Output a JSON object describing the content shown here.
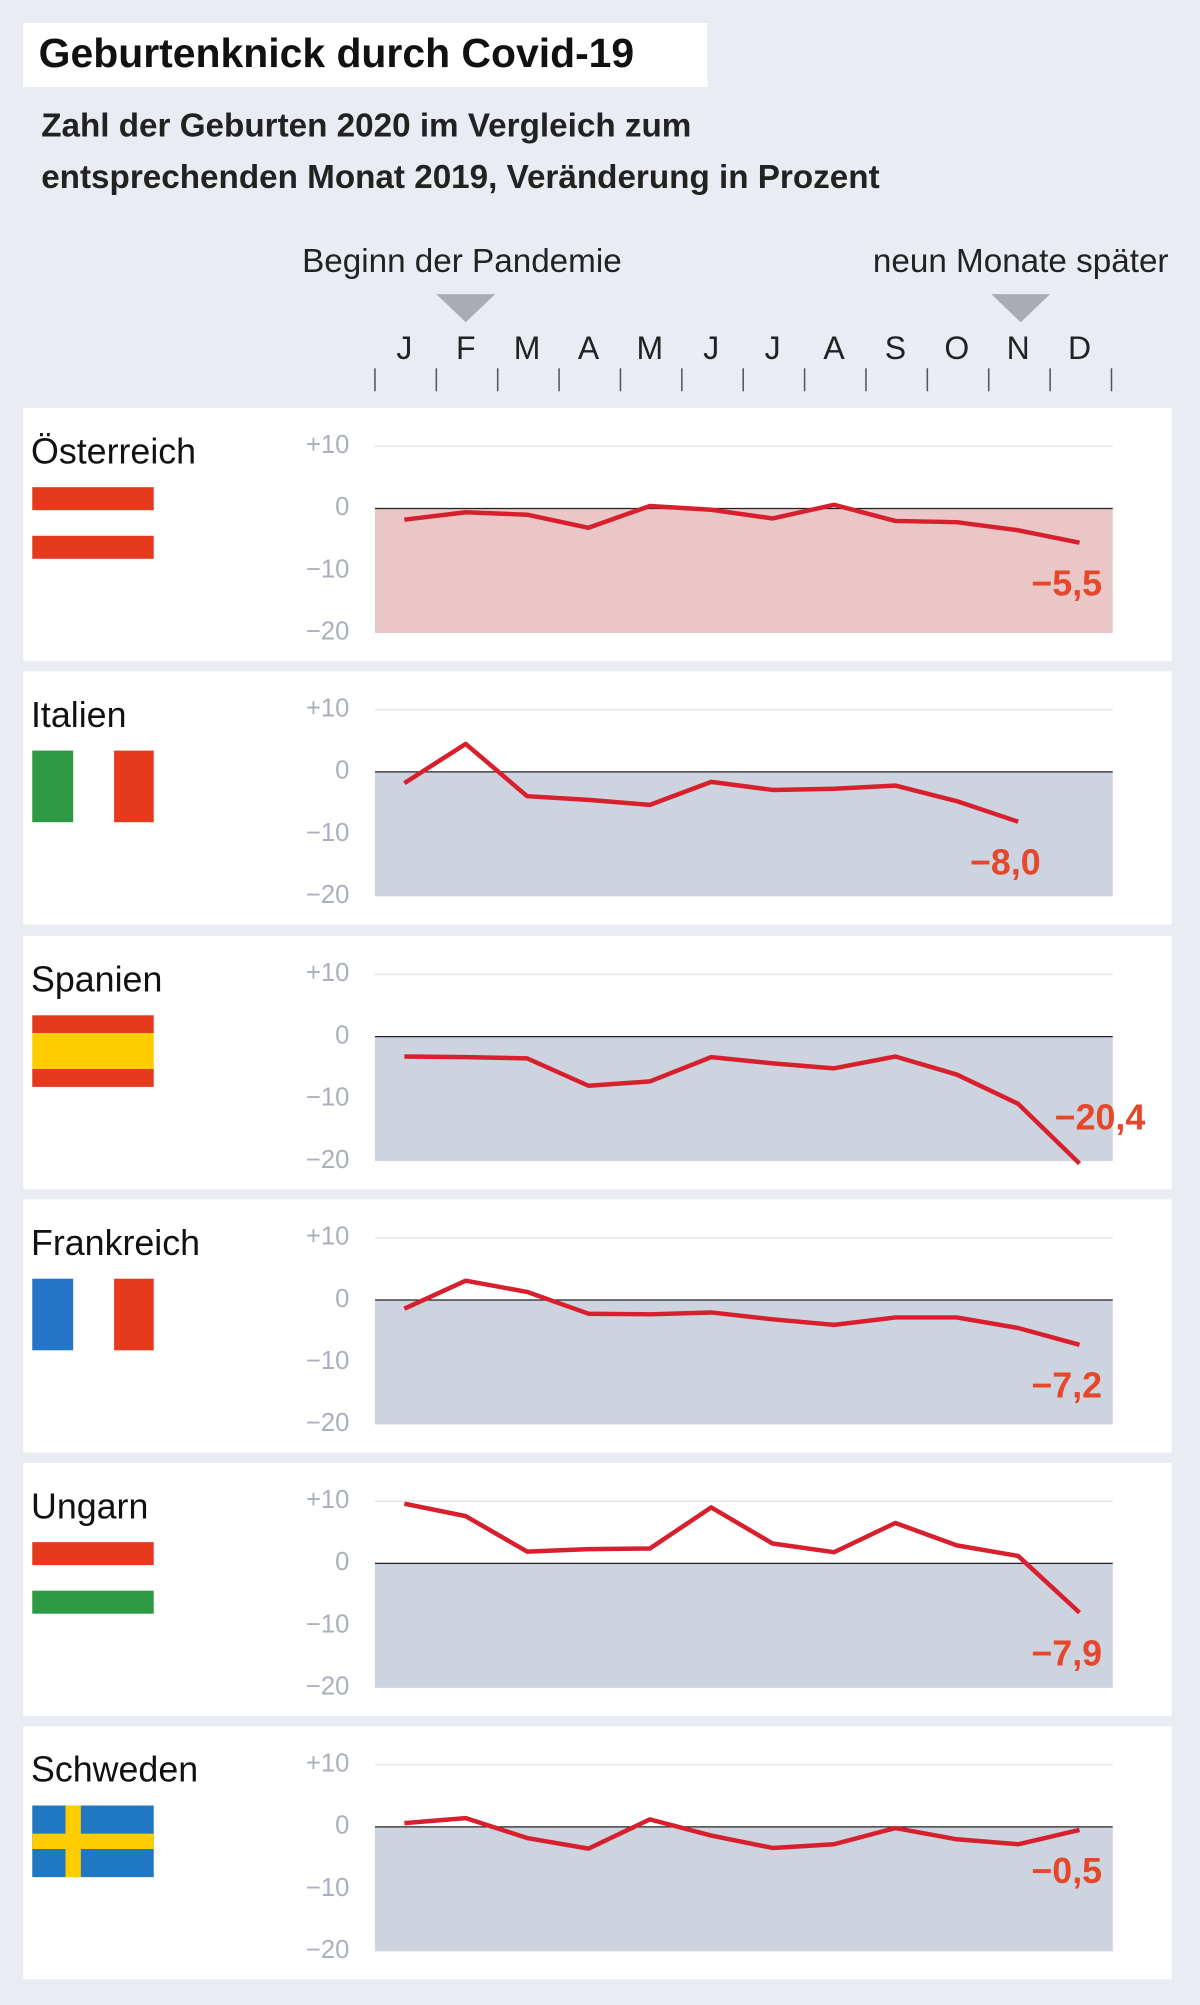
{
  "chart_data": {
    "type": "line",
    "title": "Geburtenknick durch Covid-19",
    "subtitle": [
      "Zahl der Geburten 2020 im Vergleich zum",
      "entsprechenden Monat 2019, Veränderung in Prozent"
    ],
    "annotations": [
      {
        "text": "Beginn der Pandemie",
        "at": "F"
      },
      {
        "text": "neun Monate später",
        "at": "N"
      }
    ],
    "categories": [
      "J",
      "F",
      "M",
      "A",
      "M",
      "J",
      "J",
      "A",
      "S",
      "O",
      "N",
      "D"
    ],
    "ylim": [
      -20,
      10
    ],
    "yticks": [
      {
        "value": 10,
        "label": "+10"
      },
      0,
      {
        "value": -10,
        "label": "−10"
      },
      {
        "value": -20,
        "label": "−20"
      }
    ],
    "series": [
      {
        "name": "Österreich",
        "color": "#d81f2e",
        "fill": "#eac6c6",
        "values": [
          -1.8,
          -0.6,
          -1.0,
          -3.1,
          0.4,
          -0.2,
          -1.6,
          0.6,
          -2.0,
          -2.2,
          -3.5,
          -5.5
        ],
        "value_labels": [
          null,
          null,
          null,
          null,
          null,
          null,
          null,
          null,
          null,
          null,
          null,
          "−5,5"
        ]
      },
      {
        "name": "Italien",
        "color": "#d81f2e",
        "fill": "#cdd4df",
        "values": [
          -1.8,
          4.5,
          -3.9,
          -4.5,
          -5.3,
          -1.6,
          -2.9,
          -2.7,
          -2.2,
          -4.7,
          -8.0,
          null
        ],
        "value_labels": [
          null,
          null,
          null,
          null,
          null,
          null,
          null,
          null,
          null,
          null,
          "−8,0",
          null
        ]
      },
      {
        "name": "Spanien",
        "color": "#d81f2e",
        "fill": "#cdd4df",
        "values": [
          -3.2,
          -3.3,
          -3.5,
          -7.9,
          -7.2,
          -3.3,
          -4.3,
          -5.1,
          -3.2,
          -6.1,
          -10.8,
          -20.4
        ],
        "value_labels": [
          null,
          null,
          null,
          null,
          null,
          null,
          null,
          null,
          null,
          null,
          null,
          "−20,4"
        ]
      },
      {
        "name": "Frankreich",
        "color": "#d81f2e",
        "fill": "#cdd4df",
        "values": [
          -1.4,
          3.1,
          1.3,
          -2.2,
          -2.3,
          -2.0,
          -3.1,
          -4.0,
          -2.8,
          -2.8,
          -4.5,
          -7.2
        ],
        "value_labels": [
          null,
          null,
          null,
          null,
          null,
          null,
          null,
          null,
          null,
          null,
          null,
          "−7,2"
        ]
      },
      {
        "name": "Ungarn",
        "color": "#d81f2e",
        "fill": "#cdd4df",
        "values": [
          9.6,
          7.6,
          1.9,
          2.3,
          2.4,
          9.0,
          3.2,
          1.8,
          6.5,
          2.9,
          1.2,
          -7.9
        ],
        "value_labels": [
          null,
          null,
          null,
          null,
          null,
          null,
          null,
          null,
          null,
          null,
          null,
          "−7,9"
        ]
      },
      {
        "name": "Schweden",
        "color": "#d81f2e",
        "fill": "#cdd4df",
        "values": [
          0.6,
          1.4,
          -1.8,
          -3.5,
          1.2,
          -1.4,
          -3.4,
          -2.8,
          -0.2,
          -2.0,
          -2.8,
          -0.5
        ],
        "value_labels": [
          null,
          null,
          null,
          null,
          null,
          null,
          null,
          null,
          null,
          null,
          null,
          "−0,5"
        ]
      }
    ]
  }
}
